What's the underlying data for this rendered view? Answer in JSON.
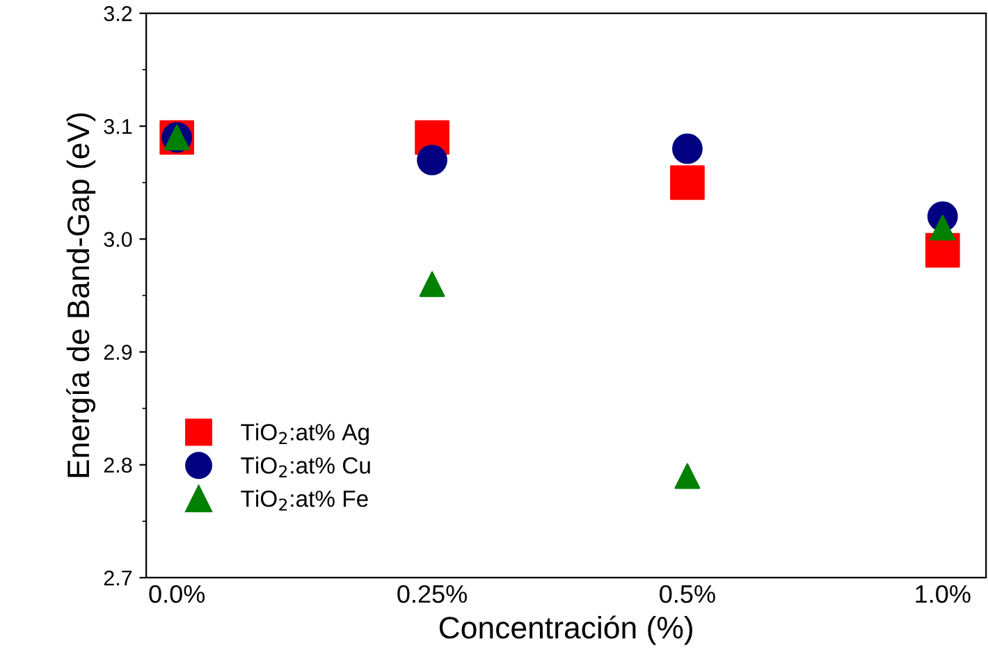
{
  "chart_data": {
    "type": "scatter",
    "xlabel": "Concentración (%)",
    "ylabel": "Energía de Band-Gap (eV)",
    "categories": [
      "0.0%",
      "0.25%",
      "0.5%",
      "1.0%"
    ],
    "series": [
      {
        "name": "TiO$_{2}$:at% Ag",
        "color": "#ff0000",
        "marker": "square",
        "values": [
          3.09,
          3.09,
          3.05,
          2.99
        ]
      },
      {
        "name": "TiO$_{2}$:at% Cu",
        "color": "#000080",
        "marker": "circle",
        "values": [
          3.09,
          3.07,
          3.08,
          3.02
        ]
      },
      {
        "name": "TiO$_{2}$:at% Fe",
        "color": "#008000",
        "marker": "triangle",
        "values": [
          3.09,
          2.96,
          2.79,
          3.01
        ]
      }
    ],
    "ylim": [
      2.7,
      3.2
    ],
    "yticks": [
      2.7,
      2.8,
      2.9,
      {
        "value": 3.0,
        "label": "3.0"
      },
      3.1,
      3.2
    ],
    "grid": false,
    "legend": "bottom left"
  }
}
